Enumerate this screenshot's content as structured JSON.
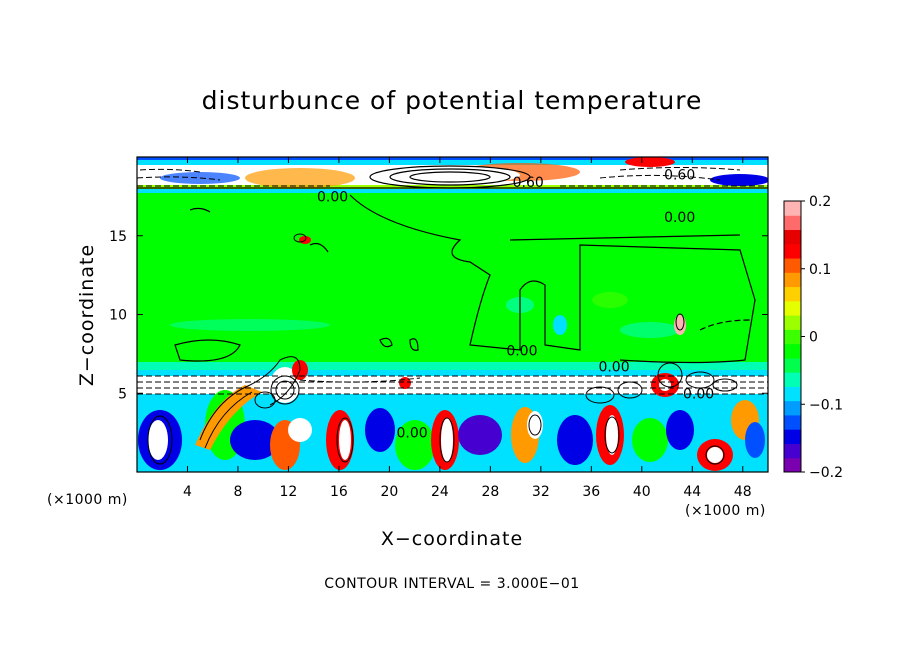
{
  "chart_data": {
    "type": "heatmap",
    "title": "disturbunce of potential temperature",
    "xlabel": "X−coordinate",
    "ylabel": "Z−coordinate",
    "x_unit_left": "(×1000 m)",
    "x_unit_right": "(×1000 m)",
    "xlim": [
      0,
      50
    ],
    "ylim": [
      0,
      20
    ],
    "x_ticks": [
      4,
      8,
      12,
      16,
      20,
      24,
      28,
      32,
      36,
      40,
      44,
      48
    ],
    "y_ticks": [
      5,
      10,
      15
    ],
    "colorbar": {
      "range": [
        -0.2,
        0.2
      ],
      "tick_labels": [
        "0.2",
        "0.1",
        "0",
        "−0.1",
        "−0.2"
      ],
      "tick_values": [
        0.2,
        0.1,
        0,
        -0.1,
        -0.2
      ],
      "colors": [
        "#7a00b0",
        "#4600d0",
        "#0000e6",
        "#0050ff",
        "#009cff",
        "#00e0ff",
        "#00ffb4",
        "#00ff4c",
        "#00ff00",
        "#3cff00",
        "#9cff00",
        "#e6ff00",
        "#ffd000",
        "#ff9a00",
        "#ff5a00",
        "#ff0000",
        "#e60000",
        "#ff6a6a",
        "#ffb4b4"
      ]
    },
    "contour_labels": [
      {
        "text": "0.00",
        "x": 15.5,
        "z": 17.5
      },
      {
        "text": "0.60",
        "x": 31.0,
        "z": 18.4
      },
      {
        "text": "0.60",
        "x": 43.0,
        "z": 18.9
      },
      {
        "text": "0.00",
        "x": 43.0,
        "z": 16.2
      },
      {
        "text": "0.00",
        "x": 30.5,
        "z": 7.7
      },
      {
        "text": "0.00",
        "x": 37.8,
        "z": 6.7
      },
      {
        "text": "0.00",
        "x": 44.5,
        "z": 5.0
      },
      {
        "text": "0.00",
        "x": 21.8,
        "z": 2.5
      }
    ],
    "contour_interval": "CONTOUR INTERVAL = 3.000E−01"
  }
}
